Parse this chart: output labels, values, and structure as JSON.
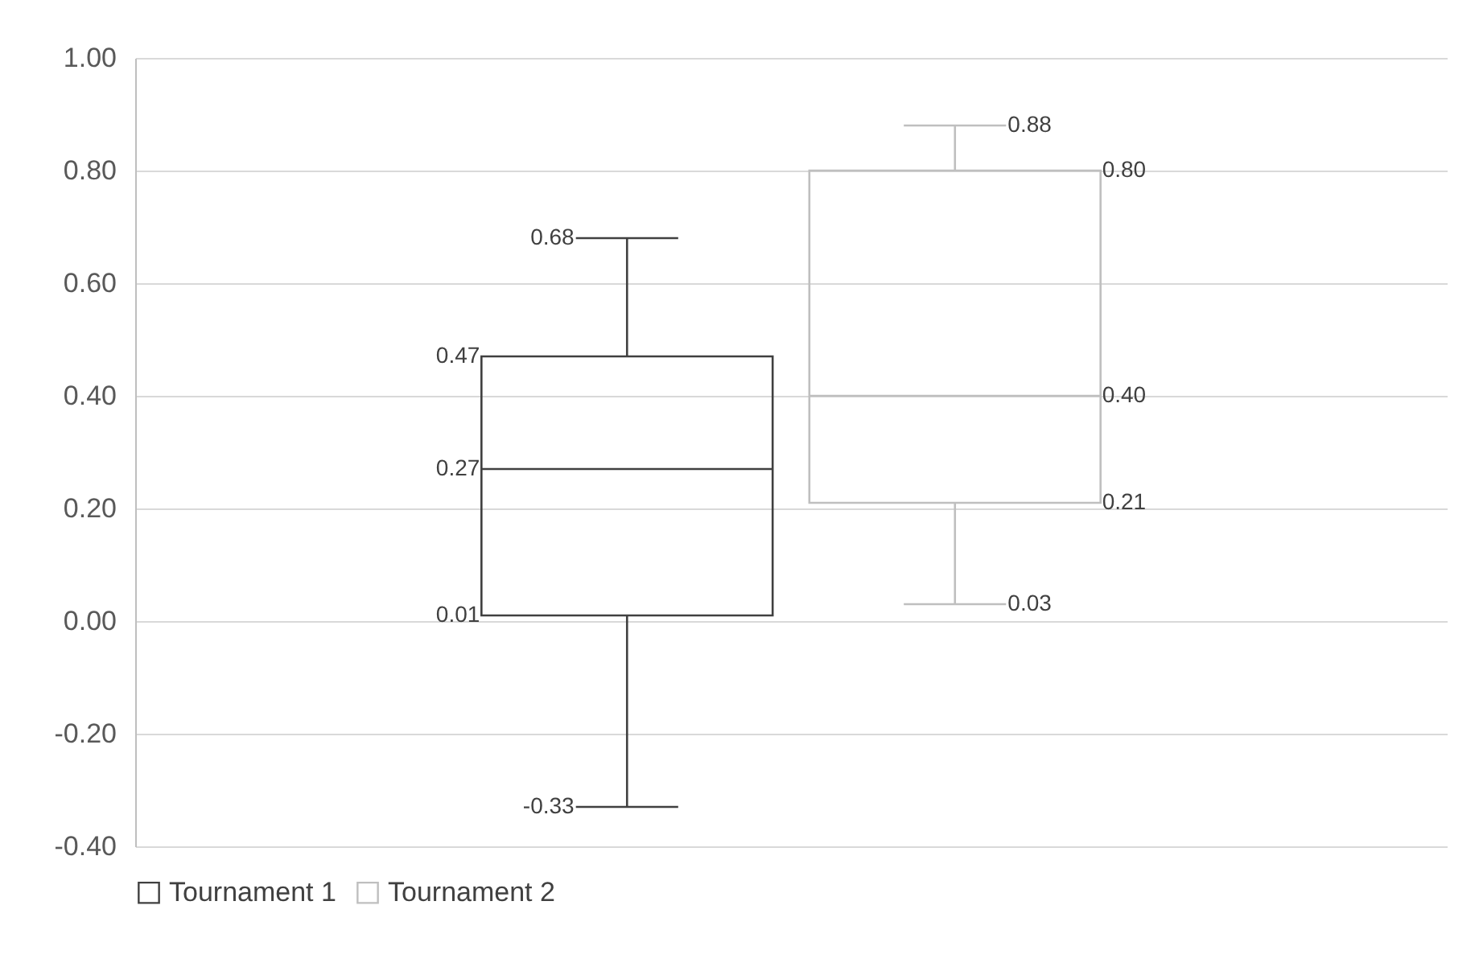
{
  "chart_data": {
    "type": "box",
    "categories": [
      null
    ],
    "series": [
      {
        "name": "Tournament 1",
        "color": "#404040",
        "boxes": [
          {
            "low": -0.33,
            "q1": 0.01,
            "median": 0.27,
            "q3": 0.47,
            "high": 0.68
          }
        ],
        "value_labels": [
          [
            "-0.33",
            "0.01",
            "0.27",
            "0.47",
            "0.68"
          ]
        ]
      },
      {
        "name": "Tournament 2",
        "color": "#bfbfbf",
        "boxes": [
          {
            "low": 0.03,
            "q1": 0.21,
            "median": 0.4,
            "q3": 0.8,
            "high": 0.88
          }
        ],
        "value_labels": [
          [
            "0.03",
            "0.21",
            "0.40",
            "0.80",
            "0.88"
          ]
        ]
      }
    ],
    "ylim": [
      -0.4,
      1.0
    ],
    "yticks": [
      {
        "value": -0.4,
        "label": "-0.40"
      },
      {
        "value": -0.2,
        "label": "-0.20"
      },
      {
        "value": 0,
        "label": "0.00"
      },
      {
        "value": 0.2,
        "label": "0.20"
      },
      {
        "value": 0.4,
        "label": "0.40"
      },
      {
        "value": 0.6,
        "label": "0.60"
      },
      {
        "value": 0.8,
        "label": "0.80"
      },
      {
        "value": 1.0,
        "label": "1.00"
      }
    ],
    "grid": "y",
    "legend": "bottom",
    "data_labels": true
  }
}
